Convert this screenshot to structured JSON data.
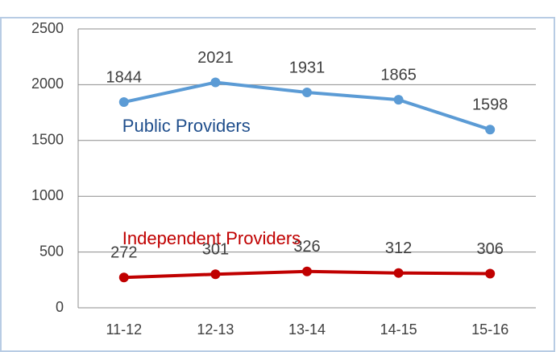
{
  "chart_data": {
    "type": "line",
    "categories": [
      "11-12",
      "12-13",
      "13-14",
      "14-15",
      "15-16"
    ],
    "series": [
      {
        "name": "Public Providers",
        "color": "#5b9bd5",
        "label_color": "#1f4e8c",
        "values": [
          1844,
          2021,
          1931,
          1865,
          1598
        ]
      },
      {
        "name": "Independent Providers",
        "color": "#c00000",
        "label_color": "#c00000",
        "values": [
          272,
          301,
          326,
          312,
          306
        ]
      }
    ],
    "ylim": [
      0,
      2500
    ],
    "yticks": [
      0,
      500,
      1000,
      1500,
      2000,
      2500
    ],
    "grid": true
  }
}
